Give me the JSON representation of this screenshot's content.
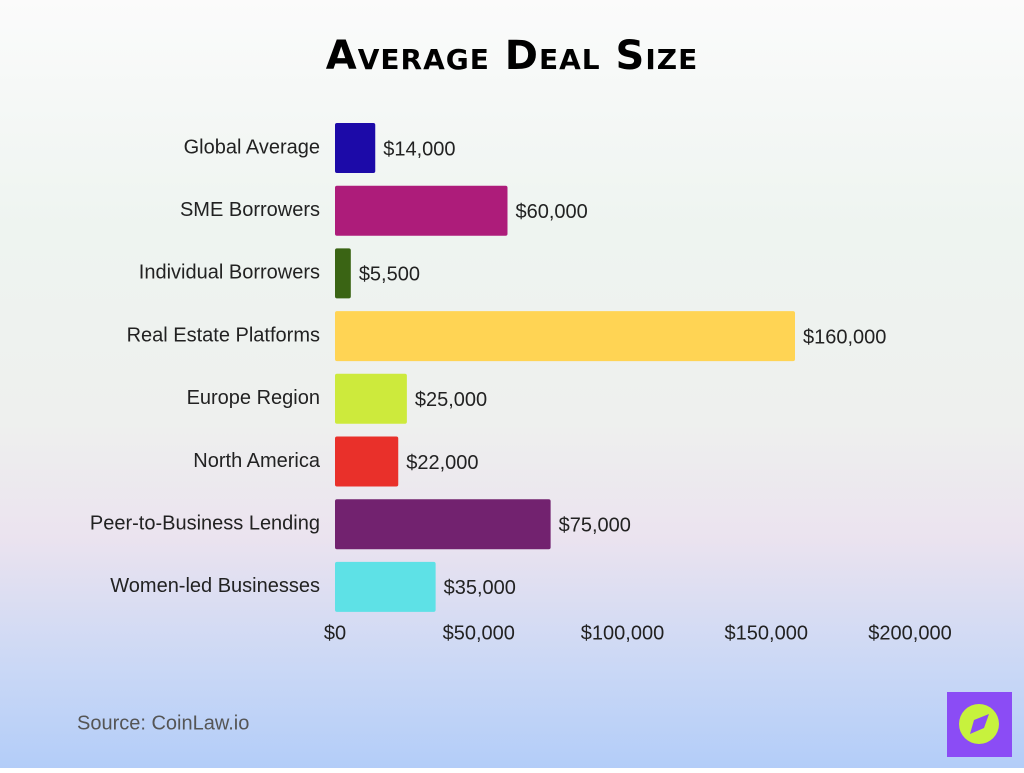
{
  "chart_data": {
    "type": "bar",
    "orientation": "horizontal",
    "title": "Average Deal Size",
    "categories": [
      "Global Average",
      "SME Borrowers",
      "Individual Borrowers",
      "Real Estate Platforms",
      "Europe Region",
      "North America",
      "Peer-to-Business Lending",
      "Women-led Businesses"
    ],
    "values": [
      14000,
      60000,
      5500,
      160000,
      25000,
      22000,
      75000,
      35000
    ],
    "value_labels": [
      "$14,000",
      "$60,000",
      "$5,500",
      "$160,000",
      "$25,000",
      "$22,000",
      "$75,000",
      "$35,000"
    ],
    "colors": [
      "#1c0aa8",
      "#ad1c7a",
      "#3a6414",
      "#ffd454",
      "#cdea3c",
      "#e9302a",
      "#72226f",
      "#5ee1e6"
    ],
    "xlim": [
      0,
      200000
    ],
    "xticks": [
      {
        "value": 0,
        "label": "$0"
      },
      {
        "value": 50000,
        "label": "$50,000"
      },
      {
        "value": 100000,
        "label": "$100,000"
      },
      {
        "value": 150000,
        "label": "$150,000"
      },
      {
        "value": 200000,
        "label": "$200,000"
      }
    ],
    "grid": false,
    "source": "Source: CoinLaw.io"
  }
}
